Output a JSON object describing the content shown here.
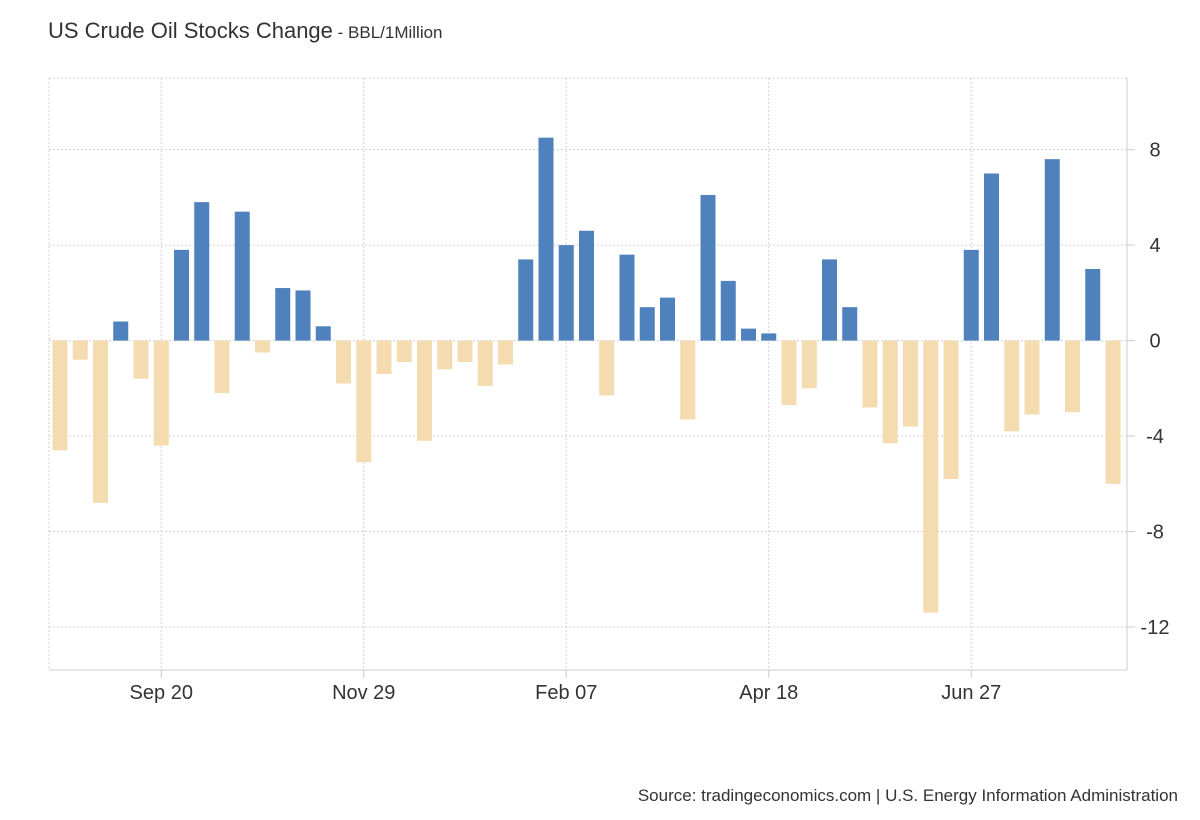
{
  "title": "US Crude Oil Stocks Change",
  "title_separator": " - ",
  "unit": "BBL/1Million",
  "source": "Source: tradingeconomics.com | U.S. Energy Information Administration",
  "colors": {
    "positive": "#4f81bd",
    "negative": "#f5dcb0",
    "grid": "#d0d0d0",
    "axis": "#cccccc"
  },
  "chart_data": {
    "type": "bar",
    "x_tick_labels": [
      "Sep 20",
      "Nov 29",
      "Feb 07",
      "Apr 18",
      "Jun 27"
    ],
    "x_tick_bar_index": [
      5,
      15,
      25,
      35,
      45
    ],
    "values": [
      -4.6,
      -0.8,
      -6.8,
      0.8,
      -1.6,
      -4.4,
      3.8,
      5.8,
      -2.2,
      5.4,
      -0.5,
      2.2,
      2.1,
      0.6,
      -1.8,
      -5.1,
      -1.4,
      -0.9,
      -4.2,
      -1.2,
      -0.9,
      -1.9,
      -1.0,
      3.4,
      8.5,
      4.0,
      4.6,
      -2.3,
      3.6,
      1.4,
      1.8,
      -3.3,
      6.1,
      2.5,
      0.5,
      0.3,
      -2.7,
      -2.0,
      3.4,
      1.4,
      -2.8,
      -4.3,
      -3.6,
      -11.4,
      -5.8,
      3.8,
      7.0,
      -3.8,
      -3.1,
      7.6,
      -3.0,
      3.0,
      -6.0
    ],
    "y_ticks": [
      -12,
      -8,
      -4,
      0,
      4,
      8
    ],
    "ylim": [
      -13.8,
      11.0
    ],
    "grid": true,
    "legend": "none"
  }
}
